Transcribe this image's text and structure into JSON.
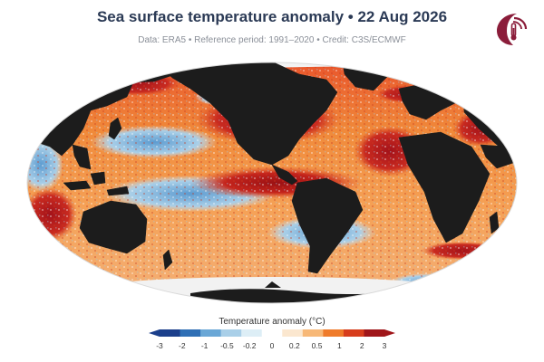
{
  "title": "Sea surface temperature anomaly • 22 Aug 2026",
  "subtitle": "Data: ERA5 • Reference period: 1991–2020 • Credit: C3S/ECMWF",
  "logo_icon": "thermometer-drop-logo",
  "legend": {
    "title": "Temperature anomaly (°C)",
    "ticks": [
      "-3",
      "-2",
      "-1",
      "-0.5",
      "-0.2",
      "0",
      "0.2",
      "0.5",
      "1",
      "2",
      "3"
    ],
    "colors": [
      "#1b3f8b",
      "#2f6fb5",
      "#6aa7d6",
      "#a9cfe8",
      "#ddeef6",
      "#ffffff",
      "#fbe7cf",
      "#f7b877",
      "#ef7b2a",
      "#d73d1c",
      "#a0161a"
    ]
  },
  "colors": {
    "land": "#1c1c1c",
    "sea_ice": "#f2f2f2",
    "strong_warm": "#b8191a",
    "warm": "#ef7b2a",
    "cool": "#6aa7d6"
  }
}
